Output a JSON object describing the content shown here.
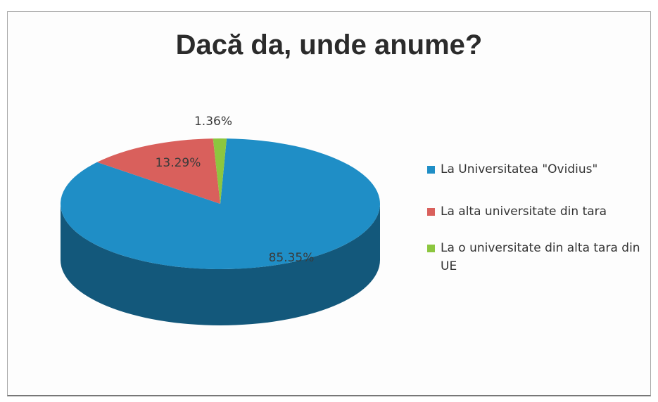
{
  "chart_data": {
    "type": "pie",
    "title": "Dacă da, unde anume?",
    "slices": [
      {
        "label": "La Universitatea \"Ovidius\"",
        "value": 85.35,
        "display": "85.35%",
        "color": "#1f8ec6"
      },
      {
        "label": "La alta universitate din tara",
        "value": 13.29,
        "display": "13.29%",
        "color": "#d9605c"
      },
      {
        "label": "La o universitate din alta tara din UE",
        "value": 1.36,
        "display": "1.36%",
        "color": "#8cc63f"
      }
    ],
    "legend_position": "right",
    "style": "3d-pie"
  },
  "legend": {
    "item1": "La Universitatea \"Ovidius\"",
    "item2": "La alta universitate din tara",
    "item3": "La o universitate din alta tara din UE"
  }
}
